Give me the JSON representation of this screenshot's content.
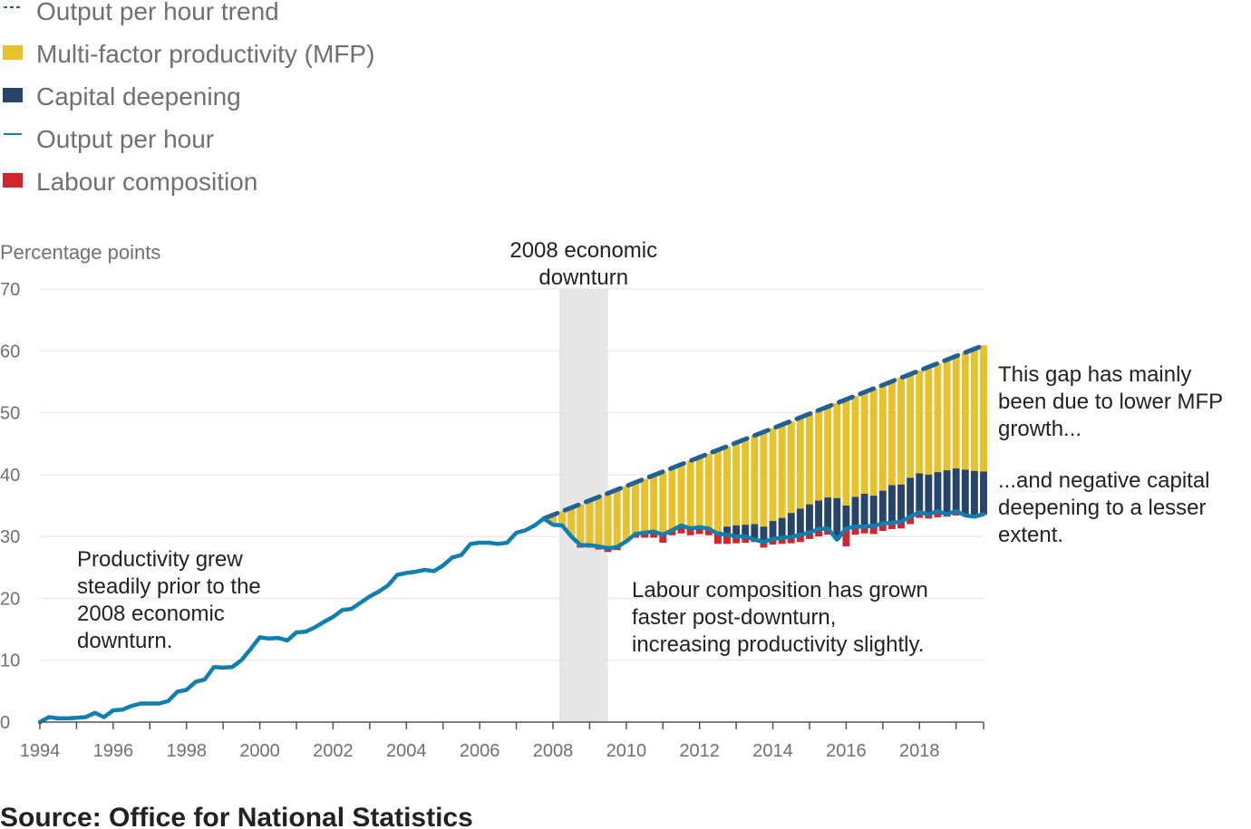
{
  "legend": [
    {
      "name": "Output per hour trend",
      "symbol": "dashed-line",
      "color": "#206095"
    },
    {
      "name": "Multi-factor productivity (MFP)",
      "symbol": "box",
      "color": "#e8c22c"
    },
    {
      "name": "Capital deepening",
      "symbol": "box",
      "color": "#27446b"
    },
    {
      "name": "Output per hour",
      "symbol": "line",
      "color": "#0f7fae"
    },
    {
      "name": "Labour composition",
      "symbol": "box",
      "color": "#d0262d"
    }
  ],
  "source": "Source: Office for National Statistics",
  "chart_data": {
    "type": "line",
    "ylabel": "Percentage points",
    "ylim": [
      0,
      70
    ],
    "yticks": [
      0,
      10,
      20,
      30,
      40,
      50,
      60,
      70
    ],
    "xticks": [
      1994,
      1996,
      1998,
      2000,
      2002,
      2004,
      2006,
      2008,
      2010,
      2012,
      2014,
      2016,
      2018
    ],
    "grid": "horizontal",
    "legend_position": "top-left",
    "shaded_period": {
      "from": 2008.17,
      "to": 2009.5,
      "label": [
        "2008 economic",
        "downturn"
      ],
      "color": "#e6e6e6"
    },
    "annotations": [
      {
        "lines": [
          "Productivity grew",
          "steadily prior to the",
          "2008 economic",
          "downturn."
        ]
      },
      {
        "lines": [
          "Labour composition has grown",
          "faster post-downturn,",
          "increasing productivity slightly."
        ]
      },
      {
        "lines": [
          "This gap has mainly",
          "been due to lower MFP",
          "growth..."
        ]
      },
      {
        "lines": [
          "...and negative capital",
          "deepening to a lesser",
          "extent."
        ]
      }
    ],
    "output_per_hour": [
      [
        1994.0,
        0
      ],
      [
        1994.25,
        0.8
      ],
      [
        1994.5,
        0.6
      ],
      [
        1994.75,
        0.6
      ],
      [
        1995.0,
        0.7
      ],
      [
        1995.25,
        0.8
      ],
      [
        1995.5,
        1.5
      ],
      [
        1995.75,
        0.8
      ],
      [
        1996.0,
        1.9
      ],
      [
        1996.25,
        2.0
      ],
      [
        1996.5,
        2.6
      ],
      [
        1996.75,
        3.0
      ],
      [
        1997.0,
        3.0
      ],
      [
        1997.25,
        3.0
      ],
      [
        1997.5,
        3.4
      ],
      [
        1997.75,
        4.9
      ],
      [
        1998.0,
        5.2
      ],
      [
        1998.25,
        6.5
      ],
      [
        1998.5,
        6.9
      ],
      [
        1998.75,
        8.9
      ],
      [
        1999.0,
        8.8
      ],
      [
        1999.25,
        8.9
      ],
      [
        1999.5,
        10.0
      ],
      [
        1999.75,
        11.8
      ],
      [
        2000.0,
        13.7
      ],
      [
        2000.25,
        13.5
      ],
      [
        2000.5,
        13.6
      ],
      [
        2000.75,
        13.2
      ],
      [
        2001.0,
        14.5
      ],
      [
        2001.25,
        14.6
      ],
      [
        2001.5,
        15.3
      ],
      [
        2001.75,
        16.2
      ],
      [
        2002.0,
        17.0
      ],
      [
        2002.25,
        18.1
      ],
      [
        2002.5,
        18.3
      ],
      [
        2002.75,
        19.3
      ],
      [
        2003.0,
        20.3
      ],
      [
        2003.25,
        21.1
      ],
      [
        2003.5,
        22.1
      ],
      [
        2003.75,
        23.8
      ],
      [
        2004.0,
        24.1
      ],
      [
        2004.25,
        24.3
      ],
      [
        2004.5,
        24.6
      ],
      [
        2004.75,
        24.4
      ],
      [
        2005.0,
        25.3
      ],
      [
        2005.25,
        26.6
      ],
      [
        2005.5,
        27.0
      ],
      [
        2005.75,
        28.8
      ],
      [
        2006.0,
        29.0
      ],
      [
        2006.25,
        29.0
      ],
      [
        2006.5,
        28.8
      ],
      [
        2006.75,
        29.0
      ],
      [
        2007.0,
        30.6
      ],
      [
        2007.25,
        31.0
      ],
      [
        2007.5,
        31.8
      ],
      [
        2007.75,
        32.9
      ],
      [
        2008.0,
        31.9
      ],
      [
        2008.25,
        31.8
      ],
      [
        2008.5,
        30.0
      ],
      [
        2008.75,
        28.6
      ],
      [
        2009.0,
        28.6
      ],
      [
        2009.25,
        28.4
      ],
      [
        2009.5,
        28.1
      ],
      [
        2009.75,
        28.3
      ],
      [
        2010.0,
        29.2
      ],
      [
        2010.25,
        30.4
      ],
      [
        2010.5,
        30.6
      ],
      [
        2010.75,
        30.8
      ],
      [
        2011.0,
        30.3
      ],
      [
        2011.25,
        31.0
      ],
      [
        2011.5,
        31.8
      ],
      [
        2011.75,
        31.3
      ],
      [
        2012.0,
        31.5
      ],
      [
        2012.25,
        31.3
      ],
      [
        2012.5,
        30.4
      ],
      [
        2012.75,
        30.3
      ],
      [
        2013.0,
        30.0
      ],
      [
        2013.25,
        30.0
      ],
      [
        2013.5,
        29.5
      ],
      [
        2013.75,
        29.1
      ],
      [
        2014.0,
        29.6
      ],
      [
        2014.25,
        29.8
      ],
      [
        2014.5,
        29.9
      ],
      [
        2014.75,
        30.3
      ],
      [
        2015.0,
        30.6
      ],
      [
        2015.25,
        31.2
      ],
      [
        2015.5,
        31.3
      ],
      [
        2015.75,
        29.5
      ],
      [
        2016.0,
        31.3
      ],
      [
        2016.25,
        31.6
      ],
      [
        2016.5,
        31.6
      ],
      [
        2016.75,
        31.7
      ],
      [
        2017.0,
        32.1
      ],
      [
        2017.25,
        32.2
      ],
      [
        2017.5,
        32.4
      ],
      [
        2017.75,
        33.2
      ],
      [
        2018.0,
        33.9
      ],
      [
        2018.25,
        33.6
      ],
      [
        2018.5,
        34.1
      ],
      [
        2018.75,
        33.6
      ],
      [
        2019.0,
        34.1
      ],
      [
        2019.25,
        33.4
      ],
      [
        2019.5,
        33.2
      ],
      [
        2019.75,
        33.6
      ]
    ],
    "output_per_hour_trend": {
      "x": [
        2007.75,
        2019.75
      ],
      "y": [
        32.9,
        60.9
      ]
    },
    "decomposition": {
      "start": 2008.0,
      "step": 0.25,
      "capital_deepening_top": [
        31.9,
        31.8,
        30.0,
        28.6,
        28.6,
        28.4,
        28.1,
        28.3,
        29.2,
        30.4,
        30.6,
        30.8,
        30.3,
        31.0,
        31.8,
        31.3,
        31.5,
        31.3,
        30.8,
        31.6,
        31.8,
        31.9,
        32.0,
        31.6,
        32.5,
        33.0,
        33.8,
        34.5,
        35.2,
        35.8,
        36.3,
        36.2,
        35.0,
        36.4,
        36.9,
        36.6,
        37.4,
        38.3,
        38.4,
        39.5,
        40.2,
        40.0,
        40.4,
        40.7,
        41.0,
        40.8,
        40.6,
        40.5
      ],
      "labour_composition_bottom": [
        31.9,
        31.8,
        30.0,
        28.2,
        28.2,
        27.9,
        27.5,
        27.8,
        29.2,
        29.8,
        29.8,
        29.8,
        29.0,
        30.2,
        30.5,
        30.2,
        30.4,
        30.2,
        28.8,
        28.8,
        28.9,
        29.0,
        29.1,
        28.2,
        28.7,
        28.8,
        28.9,
        29.1,
        29.6,
        30.0,
        30.3,
        30.6,
        28.4,
        30.3,
        30.5,
        30.4,
        30.9,
        31.2,
        31.3,
        32.0,
        33.0,
        32.9,
        33.1,
        33.2,
        33.4,
        33.3,
        33.4,
        33.5
      ]
    }
  }
}
